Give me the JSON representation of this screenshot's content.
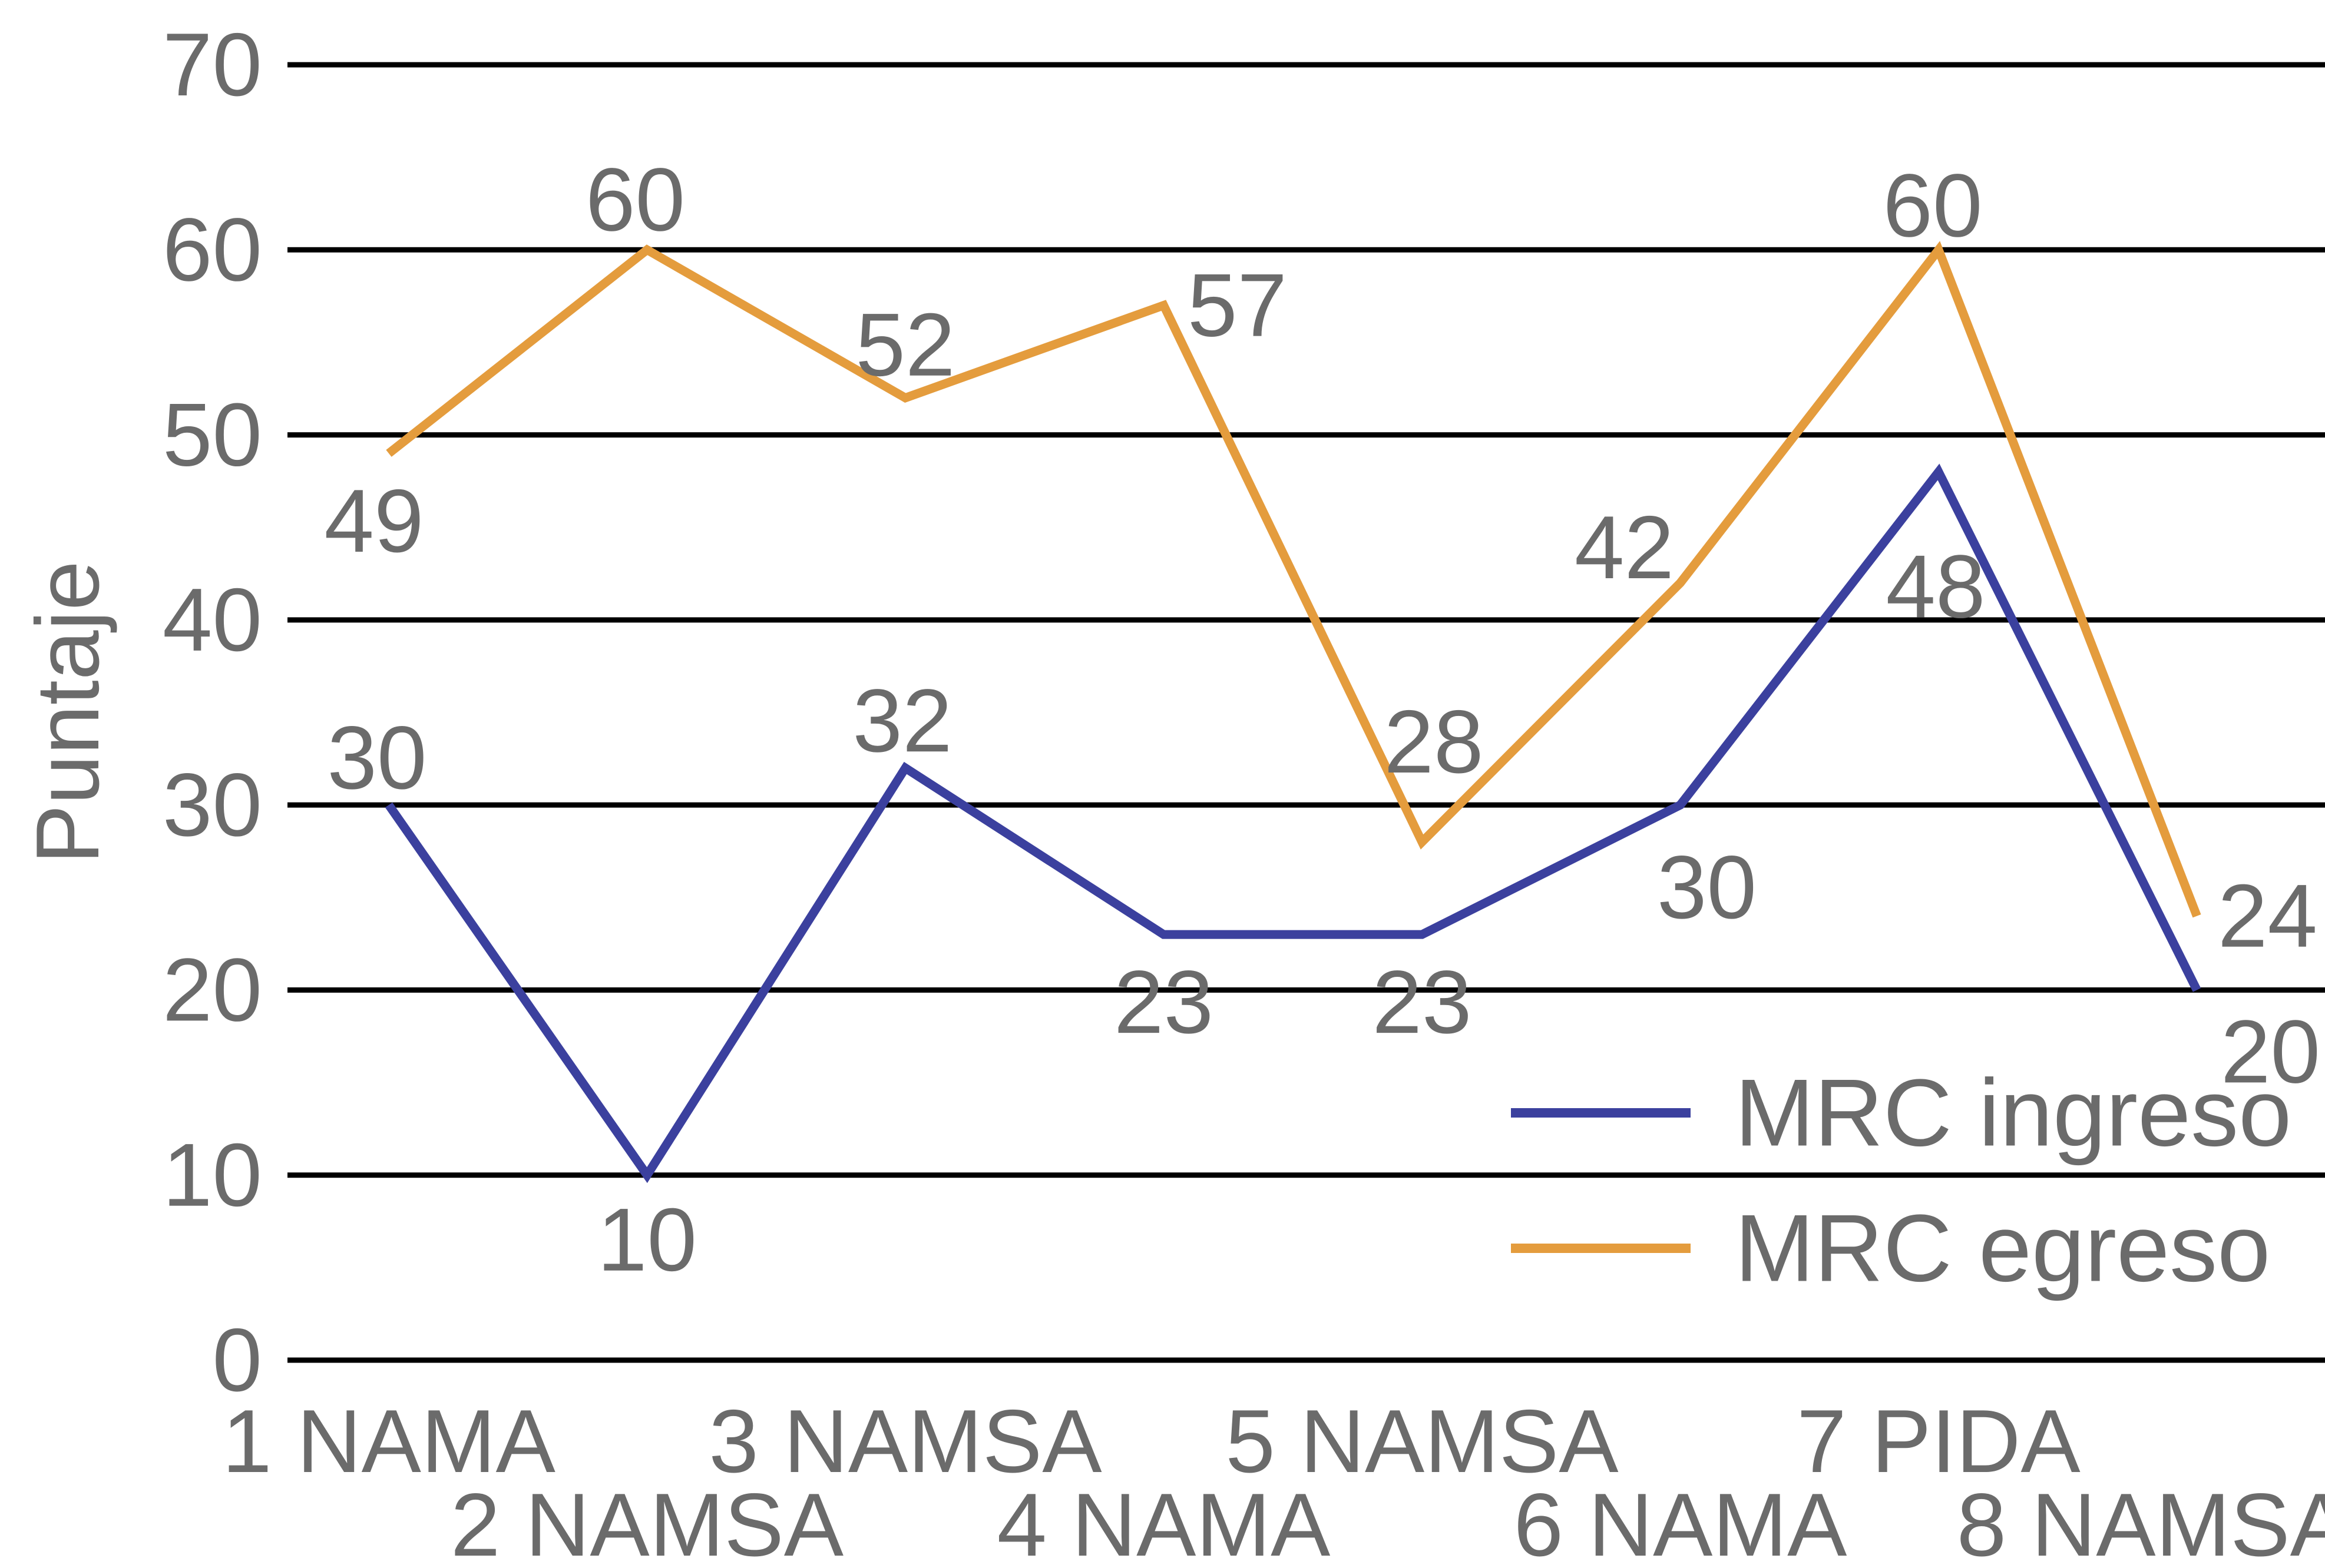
{
  "chart_data": {
    "type": "line",
    "title": "",
    "xlabel": "",
    "ylabel": "Puntaje",
    "categories": [
      "1 NAMA",
      "2 NAMSA",
      "3 NAMSA",
      "4 NAMA",
      "5 NAMSA",
      "6 NAMA",
      "7 PIDA",
      "8 NAMSA"
    ],
    "series": [
      {
        "name": "MRC ingreso",
        "color": "#3B409E",
        "values": [
          30,
          10,
          32,
          23,
          23,
          30,
          48,
          20
        ],
        "label_offsets": [
          [
            -20,
            -80
          ],
          [
            0,
            110
          ],
          [
            -5,
            -80
          ],
          [
            0,
            115
          ],
          [
            0,
            115
          ],
          [
            45,
            140
          ],
          [
            -5,
            195
          ],
          [
            125,
            105
          ]
        ]
      },
      {
        "name": "MRC egreso",
        "color": "#E49C3D",
        "values": [
          49,
          60,
          52,
          57,
          28,
          42,
          60,
          24
        ],
        "label_offsets": [
          [
            -25,
            115
          ],
          [
            -20,
            -85
          ],
          [
            0,
            -90
          ],
          [
            125,
            0
          ],
          [
            20,
            -170
          ],
          [
            -95,
            -60
          ],
          [
            -10,
            -75
          ],
          [
            120,
            0
          ]
        ]
      }
    ],
    "ylim": [
      0,
      70
    ],
    "yticks": [
      0,
      10,
      20,
      30,
      40,
      50,
      60,
      70
    ],
    "grid": "horizontal",
    "grid_color": "#000000",
    "text_color": "#6B6B6B",
    "background": "#FFFFFF",
    "legend_position": "bottom-right"
  }
}
